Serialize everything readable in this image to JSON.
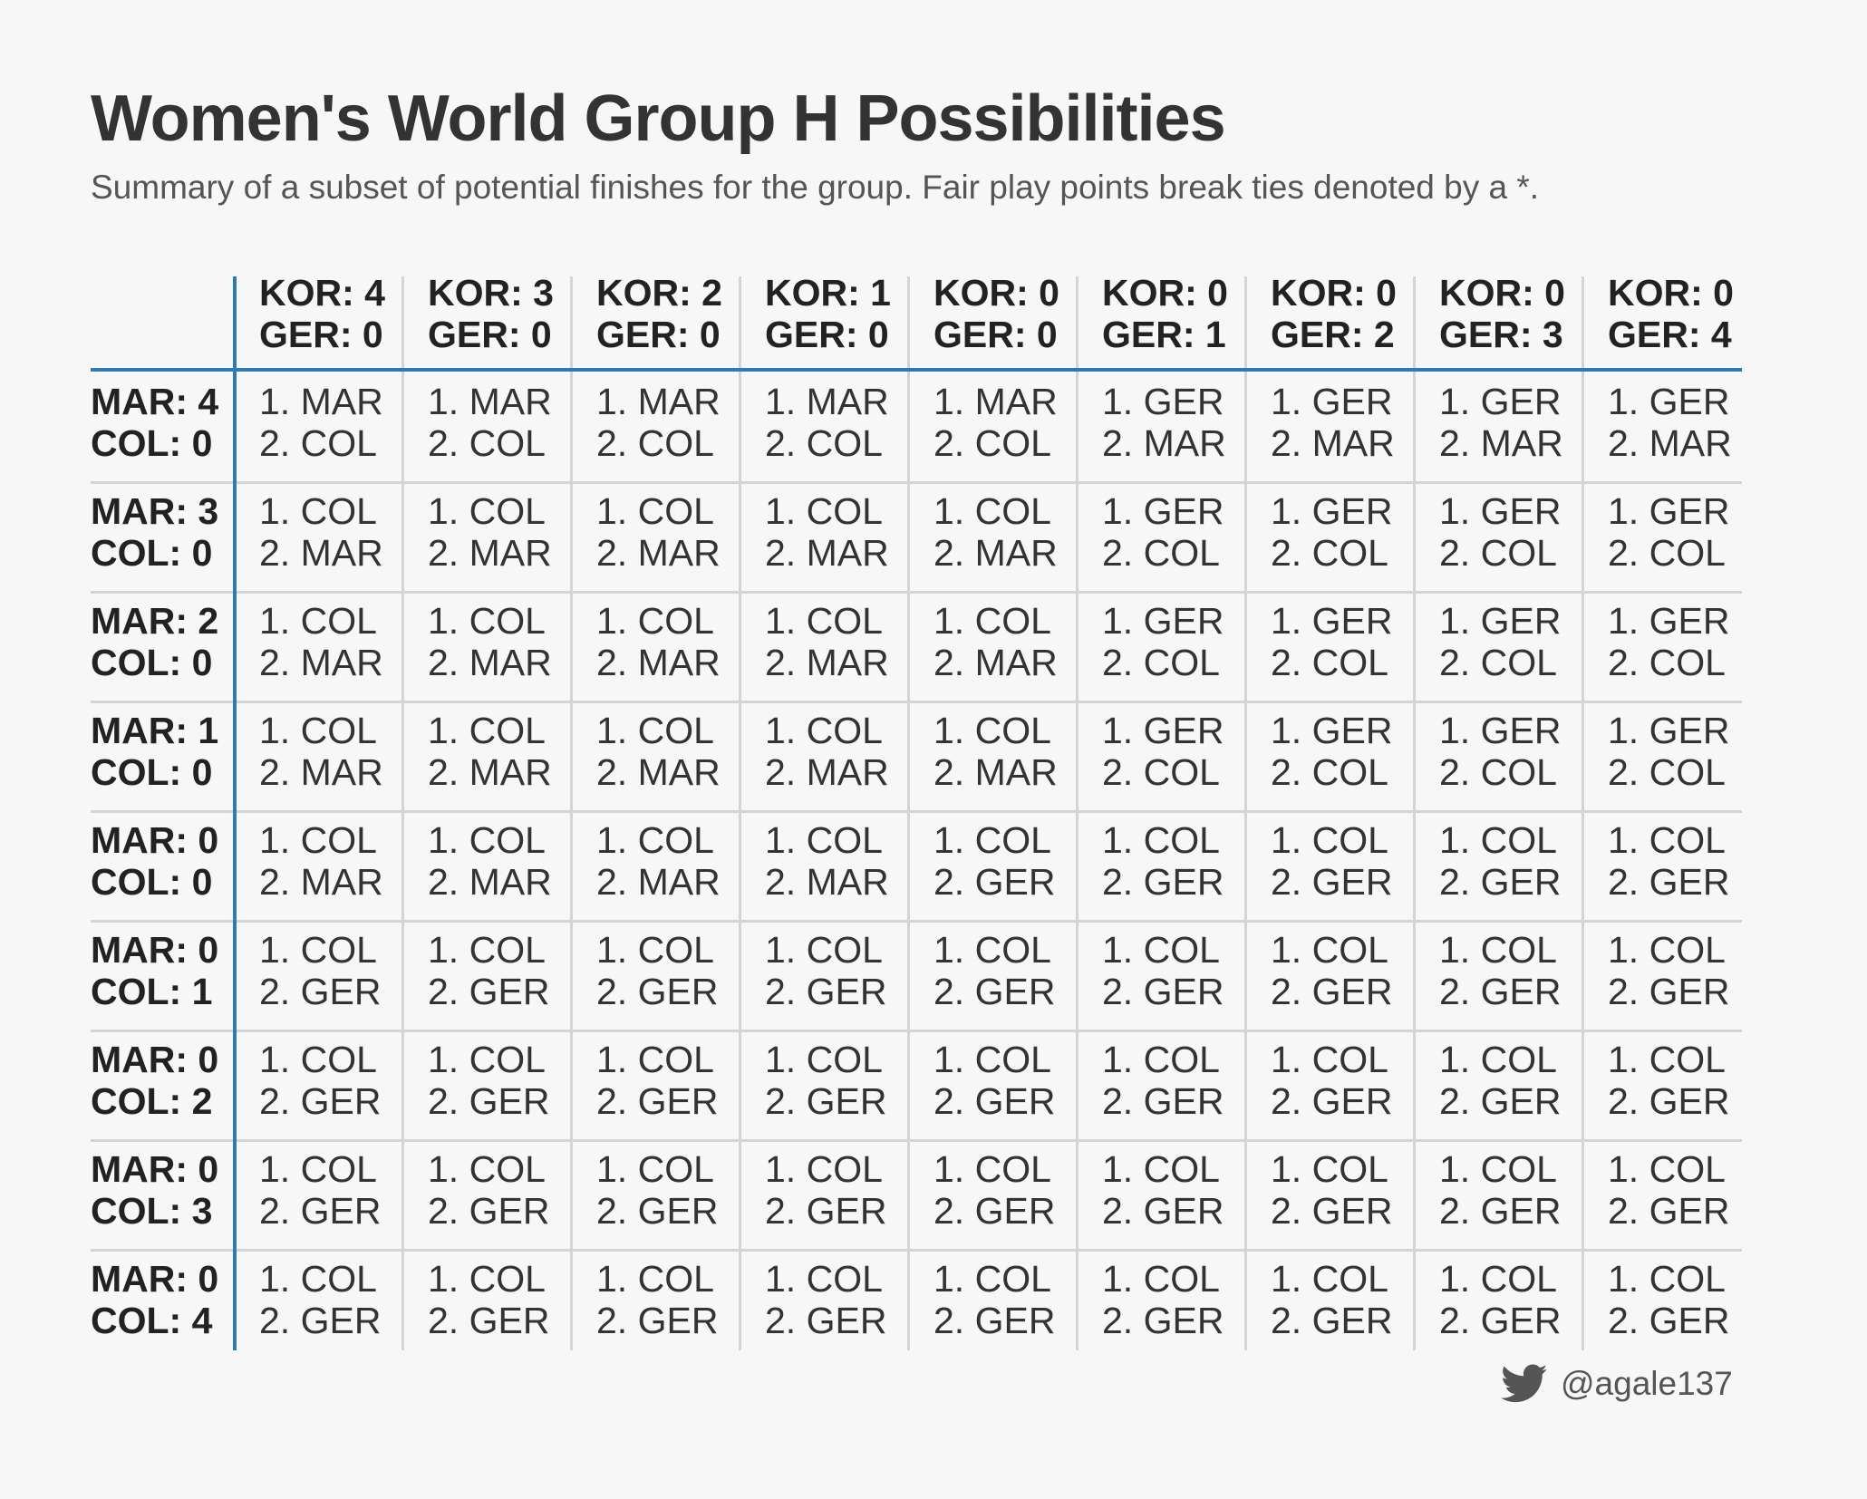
{
  "title": "Women's World Group H Possibilities",
  "subtitle": "Summary of a subset of potential finishes for the group. Fair play points break ties denoted by a *.",
  "credit": {
    "icon": "twitter-icon",
    "handle": "@agale137"
  },
  "colors": {
    "accent": "#2d7bb6",
    "separator": "#d4d4d4",
    "background": "#f7f7f7"
  },
  "chart_data": {
    "type": "table",
    "column_headers": [
      [
        "KOR: 4",
        "GER: 0"
      ],
      [
        "KOR: 3",
        "GER: 0"
      ],
      [
        "KOR: 2",
        "GER: 0"
      ],
      [
        "KOR: 1",
        "GER: 0"
      ],
      [
        "KOR: 0",
        "GER: 0"
      ],
      [
        "KOR: 0",
        "GER: 1"
      ],
      [
        "KOR: 0",
        "GER: 2"
      ],
      [
        "KOR: 0",
        "GER: 3"
      ],
      [
        "KOR: 0",
        "GER: 4"
      ]
    ],
    "row_headers": [
      [
        "MAR: 4",
        "COL: 0"
      ],
      [
        "MAR: 3",
        "COL: 0"
      ],
      [
        "MAR: 2",
        "COL: 0"
      ],
      [
        "MAR: 1",
        "COL: 0"
      ],
      [
        "MAR: 0",
        "COL: 0"
      ],
      [
        "MAR: 0",
        "COL: 1"
      ],
      [
        "MAR: 0",
        "COL: 2"
      ],
      [
        "MAR: 0",
        "COL: 3"
      ],
      [
        "MAR: 0",
        "COL: 4"
      ]
    ],
    "cells": [
      [
        [
          "1. MAR",
          "2. COL"
        ],
        [
          "1. MAR",
          "2. COL"
        ],
        [
          "1. MAR",
          "2. COL"
        ],
        [
          "1. MAR",
          "2. COL"
        ],
        [
          "1. MAR",
          "2. COL"
        ],
        [
          "1. GER",
          "2. MAR"
        ],
        [
          "1. GER",
          "2. MAR"
        ],
        [
          "1. GER",
          "2. MAR"
        ],
        [
          "1. GER",
          "2. MAR"
        ]
      ],
      [
        [
          "1. COL",
          "2. MAR"
        ],
        [
          "1. COL",
          "2. MAR"
        ],
        [
          "1. COL",
          "2. MAR"
        ],
        [
          "1. COL",
          "2. MAR"
        ],
        [
          "1. COL",
          "2. MAR"
        ],
        [
          "1. GER",
          "2. COL"
        ],
        [
          "1. GER",
          "2. COL"
        ],
        [
          "1. GER",
          "2. COL"
        ],
        [
          "1. GER",
          "2. COL"
        ]
      ],
      [
        [
          "1. COL",
          "2. MAR"
        ],
        [
          "1. COL",
          "2. MAR"
        ],
        [
          "1. COL",
          "2. MAR"
        ],
        [
          "1. COL",
          "2. MAR"
        ],
        [
          "1. COL",
          "2. MAR"
        ],
        [
          "1. GER",
          "2. COL"
        ],
        [
          "1. GER",
          "2. COL"
        ],
        [
          "1. GER",
          "2. COL"
        ],
        [
          "1. GER",
          "2. COL"
        ]
      ],
      [
        [
          "1. COL",
          "2. MAR"
        ],
        [
          "1. COL",
          "2. MAR"
        ],
        [
          "1. COL",
          "2. MAR"
        ],
        [
          "1. COL",
          "2. MAR"
        ],
        [
          "1. COL",
          "2. MAR"
        ],
        [
          "1. GER",
          "2. COL"
        ],
        [
          "1. GER",
          "2. COL"
        ],
        [
          "1. GER",
          "2. COL"
        ],
        [
          "1. GER",
          "2. COL"
        ]
      ],
      [
        [
          "1. COL",
          "2. MAR"
        ],
        [
          "1. COL",
          "2. MAR"
        ],
        [
          "1. COL",
          "2. MAR"
        ],
        [
          "1. COL",
          "2. MAR"
        ],
        [
          "1. COL",
          "2. GER"
        ],
        [
          "1. COL",
          "2. GER"
        ],
        [
          "1. COL",
          "2. GER"
        ],
        [
          "1. COL",
          "2. GER"
        ],
        [
          "1. COL",
          "2. GER"
        ]
      ],
      [
        [
          "1. COL",
          "2. GER"
        ],
        [
          "1. COL",
          "2. GER"
        ],
        [
          "1. COL",
          "2. GER"
        ],
        [
          "1. COL",
          "2. GER"
        ],
        [
          "1. COL",
          "2. GER"
        ],
        [
          "1. COL",
          "2. GER"
        ],
        [
          "1. COL",
          "2. GER"
        ],
        [
          "1. COL",
          "2. GER"
        ],
        [
          "1. COL",
          "2. GER"
        ]
      ],
      [
        [
          "1. COL",
          "2. GER"
        ],
        [
          "1. COL",
          "2. GER"
        ],
        [
          "1. COL",
          "2. GER"
        ],
        [
          "1. COL",
          "2. GER"
        ],
        [
          "1. COL",
          "2. GER"
        ],
        [
          "1. COL",
          "2. GER"
        ],
        [
          "1. COL",
          "2. GER"
        ],
        [
          "1. COL",
          "2. GER"
        ],
        [
          "1. COL",
          "2. GER"
        ]
      ],
      [
        [
          "1. COL",
          "2. GER"
        ],
        [
          "1. COL",
          "2. GER"
        ],
        [
          "1. COL",
          "2. GER"
        ],
        [
          "1. COL",
          "2. GER"
        ],
        [
          "1. COL",
          "2. GER"
        ],
        [
          "1. COL",
          "2. GER"
        ],
        [
          "1. COL",
          "2. GER"
        ],
        [
          "1. COL",
          "2. GER"
        ],
        [
          "1. COL",
          "2. GER"
        ]
      ],
      [
        [
          "1. COL",
          "2. GER"
        ],
        [
          "1. COL",
          "2. GER"
        ],
        [
          "1. COL",
          "2. GER"
        ],
        [
          "1. COL",
          "2. GER"
        ],
        [
          "1. COL",
          "2. GER"
        ],
        [
          "1. COL",
          "2. GER"
        ],
        [
          "1. COL",
          "2. GER"
        ],
        [
          "1. COL",
          "2. GER"
        ],
        [
          "1. COL",
          "2. GER"
        ]
      ]
    ]
  }
}
